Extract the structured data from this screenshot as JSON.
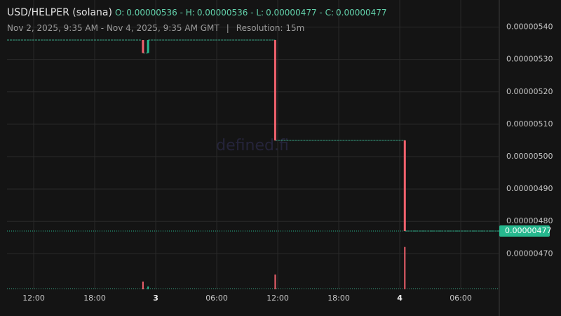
{
  "chart_data": {
    "type": "candlestick",
    "title": "USD/HELPER (solana)",
    "ohlc": [
      {
        "label": "O:",
        "value": "0.00000536"
      },
      {
        "label": "H:",
        "value": "0.00000536"
      },
      {
        "label": "L:",
        "value": "0.00000477"
      },
      {
        "label": "C:",
        "value": "0.00000477"
      }
    ],
    "subtitle": "Nov 2, 2025, 9:35 AM - Nov 4, 2025, 9:35 AM GMT",
    "resolution": "Resolution: 15m",
    "watermark": "defined.fi",
    "up_color": "#26b88e",
    "down_color": "#f0616d",
    "xlim": [
      "2025-11-02 09:35",
      "2025-11-04 09:35"
    ],
    "xticks": [
      {
        "value": "2025-11-02 12:00",
        "label": "12:00"
      },
      {
        "value": "2025-11-02 18:00",
        "label": "18:00"
      },
      {
        "value": "2025-11-03 00:00",
        "label": "3"
      },
      {
        "value": "2025-11-03 06:00",
        "label": "06:00"
      },
      {
        "value": "2025-11-03 12:00",
        "label": "12:00"
      },
      {
        "value": "2025-11-03 18:00",
        "label": "18:00"
      },
      {
        "value": "2025-11-04 00:00",
        "label": "4"
      },
      {
        "value": "2025-11-04 06:00",
        "label": "06:00"
      }
    ],
    "ylim": [
      4.59e-06,
      5.462e-06
    ],
    "yticks": [
      {
        "value": 4.7e-06,
        "label": "0.00000470"
      },
      {
        "value": 4.8e-06,
        "label": "0.00000480"
      },
      {
        "value": 4.9e-06,
        "label": "0.00000490"
      },
      {
        "value": 5e-06,
        "label": "0.00000500"
      },
      {
        "value": 5.1e-06,
        "label": "0.00000510"
      },
      {
        "value": 5.2e-06,
        "label": "0.00000520"
      },
      {
        "value": 5.3e-06,
        "label": "0.00000530"
      },
      {
        "value": 5.4e-06,
        "label": "0.00000540"
      }
    ],
    "grid": true,
    "candles": [
      {
        "x": "2025-11-02 22:45",
        "open": 5.36e-06,
        "high": 5.36e-06,
        "low": 5.32e-06,
        "close": 5.32e-06,
        "volume": 11
      },
      {
        "x": "2025-11-02 23:15",
        "open": 5.32e-06,
        "high": 5.36e-06,
        "low": 5.32e-06,
        "close": 5.36e-06,
        "volume": 4
      },
      {
        "x": "2025-11-03 11:45",
        "open": 5.36e-06,
        "high": 5.36e-06,
        "low": 5.05e-06,
        "close": 5.05e-06,
        "volume": 21
      },
      {
        "x": "2025-11-04 00:30",
        "open": 5.05e-06,
        "high": 5.05e-06,
        "low": 4.77e-06,
        "close": 4.77e-06,
        "volume": 60
      }
    ],
    "vlim": [
      0,
      200
    ],
    "last_price": {
      "value": 4.77e-06,
      "label": "0.00000477"
    }
  }
}
